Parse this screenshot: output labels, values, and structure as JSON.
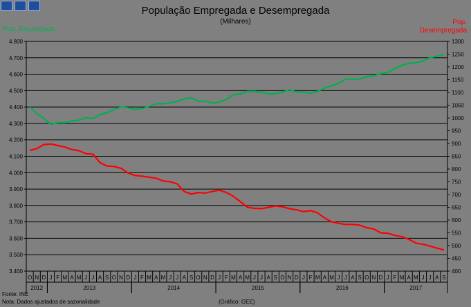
{
  "header": {
    "title": "População Empregada e Desempregada",
    "subtitle": "(Milhares)",
    "left_axis_label": "Pop. Empregada",
    "right_axis_label_line1": "Pop.",
    "right_axis_label_line2": "Desempregada"
  },
  "footer": {
    "source": "Fonte: INE",
    "note": "Nota: Dados ajustados de sazonalidade",
    "credit": "(Gráfico: GEE)"
  },
  "colors": {
    "background": "#808080",
    "employed": "#00b050",
    "unemployed": "#ff0000",
    "grid": "#000000",
    "brand": "#1f4e9c"
  },
  "chart_data": {
    "type": "line",
    "title": "População Empregada e Desempregada",
    "subtitle": "(Milhares)",
    "xlabel": "",
    "ylabel_left": "Pop. Empregada",
    "ylabel_right": "Pop. Desempregada",
    "ylim_left": [
      3400,
      4800
    ],
    "ylim_right": [
      400,
      1300
    ],
    "yticks_left": [
      "3.400",
      "3.500",
      "3.600",
      "3.700",
      "3.800",
      "3.900",
      "4.000",
      "4.100",
      "4.200",
      "4.300",
      "4.400",
      "4.500",
      "4.600",
      "4.700",
      "4.800"
    ],
    "yticks_right": [
      "400",
      "450",
      "500",
      "550",
      "600",
      "650",
      "700",
      "750",
      "800",
      "850",
      "900",
      "950",
      "1000",
      "1050",
      "1100",
      "1150",
      "1200",
      "1250",
      "1300"
    ],
    "month_labels": [
      "O",
      "N",
      "D",
      "J",
      "F",
      "M",
      "A",
      "M",
      "J",
      "J",
      "A",
      "S",
      "O",
      "N",
      "D",
      "J",
      "F",
      "M",
      "A",
      "M",
      "J",
      "J",
      "A",
      "S",
      "O",
      "N",
      "D",
      "J",
      "F",
      "M",
      "A",
      "M",
      "J",
      "J",
      "A",
      "S",
      "O",
      "N",
      "D",
      "J",
      "F",
      "M",
      "A",
      "M",
      "J",
      "J",
      "A",
      "S",
      "O",
      "N",
      "D",
      "J",
      "F",
      "M",
      "A",
      "M",
      "J",
      "J",
      "A",
      "S"
    ],
    "years": [
      {
        "label": "2012",
        "start": 0,
        "end": 3
      },
      {
        "label": "2013",
        "start": 3,
        "end": 15
      },
      {
        "label": "2014",
        "start": 15,
        "end": 27
      },
      {
        "label": "2015",
        "start": 27,
        "end": 39
      },
      {
        "label": "2016",
        "start": 39,
        "end": 51
      },
      {
        "label": "2017",
        "start": 51,
        "end": 60
      }
    ],
    "series": [
      {
        "name": "Pop. Empregada",
        "axis": "left",
        "color": "#00b050",
        "values": [
          4400,
          4360,
          4330,
          4295,
          4305,
          4305,
          4315,
          4320,
          4335,
          4330,
          4355,
          4365,
          4385,
          4400,
          4395,
          4385,
          4390,
          4405,
          4420,
          4420,
          4425,
          4435,
          4450,
          4455,
          4435,
          4435,
          4425,
          4430,
          4445,
          4475,
          4480,
          4495,
          4495,
          4490,
          4480,
          4480,
          4490,
          4505,
          4490,
          4490,
          4485,
          4495,
          4515,
          4530,
          4545,
          4570,
          4570,
          4570,
          4585,
          4590,
          4605,
          4610,
          4635,
          4655,
          4665,
          4670,
          4680,
          4700,
          4710,
          4720
        ]
      },
      {
        "name": "Pop. Desempregada",
        "axis": "right",
        "color": "#ff0000",
        "values": [
          873,
          880,
          896,
          898,
          892,
          886,
          876,
          872,
          860,
          858,
          825,
          812,
          810,
          803,
          784,
          775,
          772,
          768,
          764,
          753,
          750,
          742,
          712,
          702,
          708,
          706,
          712,
          717,
          708,
          693,
          672,
          650,
          646,
          645,
          650,
          655,
          652,
          645,
          640,
          633,
          637,
          628,
          608,
          593,
          587,
          583,
          583,
          580,
          570,
          565,
          550,
          548,
          540,
          535,
          525,
          510,
          505,
          498,
          490,
          483
        ]
      }
    ]
  }
}
